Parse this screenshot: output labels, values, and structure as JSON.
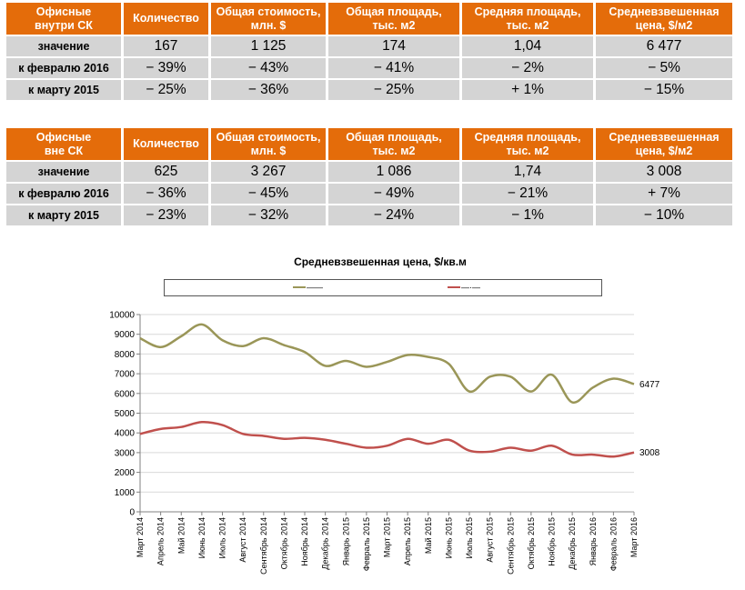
{
  "table1": {
    "header": [
      "Офисные\nвнутри СК",
      "Количество",
      "Общая стоимость,\nмлн. $",
      "Общая площадь,\nтыс. м2",
      "Средняя площадь,\nтыс. м2",
      "Средневзвешенная\nцена, $/м2"
    ],
    "rows": [
      {
        "label": "значение",
        "values": [
          "167",
          "1 125",
          "174",
          "1,04",
          "6 477"
        ]
      },
      {
        "label": "к февралю 2016",
        "values": [
          "− 39%",
          "− 43%",
          "− 41%",
          "− 2%",
          "− 5%"
        ]
      },
      {
        "label": "к марту 2015",
        "values": [
          "− 25%",
          "− 36%",
          "− 25%",
          "+ 1%",
          "− 15%"
        ]
      }
    ]
  },
  "table2": {
    "header": [
      "Офисные\nвне СК",
      "Количество",
      "Общая стоимость,\nмлн. $",
      "Общая площадь,\nтыс. м2",
      "Средняя площадь,\nтыс. м2",
      "Средневзвешенная\nцена, $/м2"
    ],
    "rows": [
      {
        "label": "значение",
        "values": [
          "625",
          "3 267",
          "1 086",
          "1,74",
          "3 008"
        ]
      },
      {
        "label": "к февралю 2016",
        "values": [
          "− 36%",
          "− 45%",
          "− 49%",
          "− 21%",
          "+ 7%"
        ]
      },
      {
        "label": "к марту 2015",
        "values": [
          "− 23%",
          "− 32%",
          "− 24%",
          "− 1%",
          "− 10%"
        ]
      }
    ]
  },
  "colors": {
    "header_bg": "#e46c0a",
    "row_bg": "#d4d4d4",
    "series1": "#9a9658",
    "series2": "#c0504d"
  },
  "chart_data": {
    "type": "line",
    "title": "Средневзвешенная цена, $/кв.м",
    "xlabel": "",
    "ylabel": "",
    "ylim": [
      0,
      10000
    ],
    "yticks": [
      0,
      1000,
      2000,
      3000,
      4000,
      5000,
      6000,
      7000,
      8000,
      9000,
      10000
    ],
    "grid": true,
    "legend": "top",
    "categories": [
      "Март 2014",
      "Апрель 2014",
      "Май 2014",
      "Июнь 2014",
      "Июль 2014",
      "Август 2014",
      "Сентябрь 2014",
      "Октябрь 2014",
      "Ноябрь 2014",
      "Декабрь 2014",
      "Январь 2015",
      "Февраль 2015",
      "Март 2015",
      "Апрель 2015",
      "Май 2015",
      "Июнь 2015",
      "Июль 2015",
      "Август 2015",
      "Сентябрь 2015",
      "Октябрь 2015",
      "Ноябрь 2015",
      "Декабрь 2015",
      "Январь 2016",
      "Февраль 2016",
      "Март 2016"
    ],
    "series": [
      {
        "legend_text": "——",
        "end_label": "6477",
        "values": [
          8800,
          8350,
          8900,
          9500,
          8700,
          8400,
          8800,
          8450,
          8100,
          7400,
          7650,
          7350,
          7600,
          7950,
          7850,
          7500,
          6100,
          6850,
          6850,
          6100,
          6950,
          5550,
          6300,
          6750,
          6477
        ]
      },
      {
        "legend_text": "—·—",
        "end_label": "3008",
        "values": [
          3950,
          4200,
          4300,
          4550,
          4400,
          3950,
          3850,
          3700,
          3750,
          3650,
          3450,
          3250,
          3350,
          3700,
          3450,
          3650,
          3100,
          3050,
          3250,
          3100,
          3350,
          2900,
          2900,
          2800,
          3008
        ]
      }
    ]
  }
}
